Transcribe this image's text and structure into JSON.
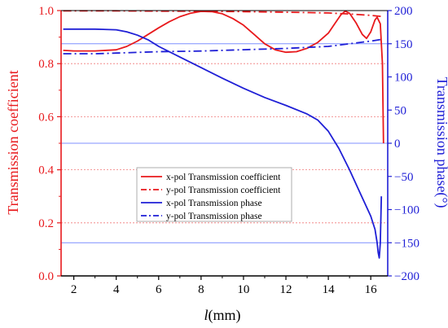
{
  "chart_data": {
    "type": "line",
    "xlabel_italic": "l",
    "xlabel_rest": "(mm)",
    "ylabel_left": "Transmission coefficient",
    "ylabel_right": "Transmission phase(°)",
    "xlim": [
      1.4,
      16.8
    ],
    "ylim_left": [
      0,
      1.0
    ],
    "ylim_right": [
      -200,
      200
    ],
    "x_ticks": [
      2,
      4,
      6,
      8,
      10,
      12,
      14,
      16
    ],
    "y_left_ticks": [
      0.0,
      0.2,
      0.4,
      0.6,
      0.8,
      1.0
    ],
    "y_right_ticks": [
      -200,
      -150,
      -100,
      -50,
      0,
      50,
      100,
      150,
      200
    ],
    "colors": {
      "left_axis": "#e8191c",
      "right_axis": "#1f1fd6",
      "red_grid": "#f07a7a",
      "blue_grid": "#7f8fff"
    },
    "grid": true,
    "legend_position": "center-left",
    "series": [
      {
        "name": "x-pol Transmission coefficient",
        "axis": "left",
        "color": "#e8191c",
        "dash": "solid",
        "x": [
          1.5,
          2,
          3,
          4,
          4.5,
          5,
          5.5,
          6,
          6.5,
          7,
          7.5,
          8,
          8.5,
          9,
          9.5,
          10,
          10.5,
          11,
          11.5,
          12,
          12.5,
          13,
          13.5,
          14,
          14.3,
          14.6,
          14.8,
          15,
          15.3,
          15.6,
          15.8,
          16,
          16.2,
          16.3,
          16.45,
          16.55,
          16.6
        ],
        "y": [
          0.85,
          0.848,
          0.848,
          0.852,
          0.865,
          0.885,
          0.91,
          0.935,
          0.958,
          0.977,
          0.99,
          0.997,
          0.996,
          0.988,
          0.97,
          0.945,
          0.91,
          0.875,
          0.852,
          0.843,
          0.845,
          0.858,
          0.88,
          0.915,
          0.95,
          0.985,
          0.998,
          0.99,
          0.955,
          0.91,
          0.895,
          0.92,
          0.965,
          0.975,
          0.95,
          0.8,
          0.5
        ]
      },
      {
        "name": "y-pol Transmission coefficient",
        "axis": "left",
        "color": "#e8191c",
        "dash": "dashdot",
        "x": [
          1.5,
          4,
          6,
          8,
          10,
          12,
          14,
          15,
          16,
          16.5
        ],
        "y": [
          0.999,
          0.999,
          0.998,
          0.998,
          0.996,
          0.994,
          0.991,
          0.987,
          0.982,
          0.978
        ]
      },
      {
        "name": "x-pol Transmission phase",
        "axis": "right",
        "color": "#1f1fd6",
        "dash": "solid",
        "x": [
          1.5,
          2,
          3,
          4,
          4.5,
          5,
          5.5,
          6,
          7,
          8,
          9,
          10,
          11,
          12,
          13,
          13.5,
          14,
          14.5,
          15,
          15.5,
          16,
          16.2,
          16.3,
          16.35,
          16.4,
          16.45,
          16.5
        ],
        "y": [
          172,
          172,
          172,
          171,
          168,
          163,
          156,
          146,
          130,
          114,
          98,
          83,
          69,
          57,
          44,
          35,
          18,
          -8,
          -40,
          -75,
          -110,
          -130,
          -150,
          -165,
          -173,
          -150,
          -80
        ]
      },
      {
        "name": "y-pol Transmission phase",
        "axis": "right",
        "color": "#1f1fd6",
        "dash": "dashdot",
        "x": [
          1.5,
          3,
          4,
          6,
          8,
          10,
          12,
          14,
          15,
          16,
          16.6
        ],
        "y": [
          135,
          135,
          136,
          138,
          139,
          141,
          143,
          146,
          150,
          154,
          157
        ]
      }
    ]
  }
}
